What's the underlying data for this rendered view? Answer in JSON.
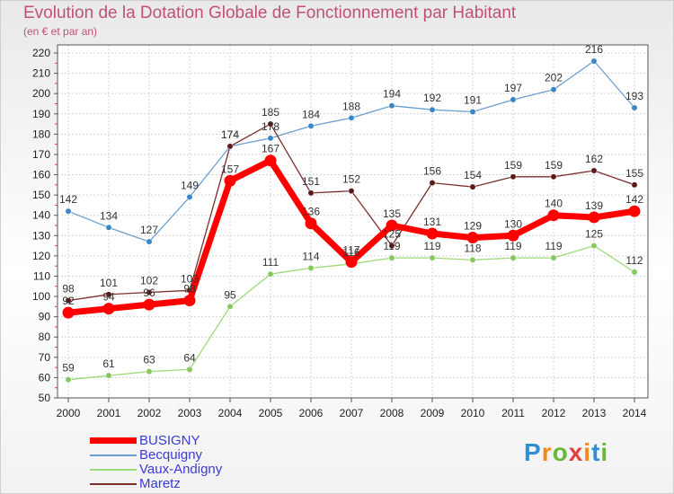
{
  "title": "Evolution de la Dotation Globale de Fonctionnement par Habitant",
  "subtitle": "(en € et par an)",
  "logo": {
    "text": "Proxiti",
    "letters": [
      "P",
      "r",
      "o",
      "x",
      "i",
      "t",
      "i"
    ],
    "colors": [
      "#2e8fd6",
      "#f08a1c",
      "#6ab83a",
      "#e04040",
      "#f08a1c",
      "#2e8fd6",
      "#6ab83a"
    ]
  },
  "chart_data": {
    "type": "line",
    "title": "Evolution de la Dotation Globale de Fonctionnement par Habitant",
    "subtitle": "(en € et par an)",
    "xlabel": "",
    "ylabel": "",
    "ylim": [
      50,
      220
    ],
    "yticks": [
      50,
      60,
      70,
      80,
      90,
      100,
      110,
      120,
      130,
      140,
      150,
      160,
      170,
      180,
      190,
      200,
      210,
      220
    ],
    "grid": true,
    "legend_position": "bottom-left",
    "x": [
      "2000",
      "2001",
      "2002",
      "2003",
      "2004",
      "2005",
      "2006",
      "2007",
      "2008",
      "2009",
      "2010",
      "2011",
      "2012",
      "2013",
      "2014"
    ],
    "series": [
      {
        "name": "Becquigny",
        "color": "#6a9fd0",
        "point_color": "#3a86c8",
        "width": 1.3,
        "marker": 3.2,
        "values": [
          142,
          134,
          127,
          149,
          174,
          178,
          184,
          188,
          194,
          192,
          191,
          197,
          202,
          216,
          193
        ]
      },
      {
        "name": "Vaux-Andigny",
        "color": "#9ed878",
        "point_color": "#86c85e",
        "width": 1.3,
        "marker": 3.2,
        "values": [
          59,
          61,
          63,
          64,
          95,
          111,
          114,
          116,
          119,
          119,
          118,
          119,
          119,
          125,
          112
        ]
      },
      {
        "name": "Maretz",
        "color": "#7a2e2e",
        "point_color": "#5a1a1a",
        "width": 1.3,
        "marker": 3.2,
        "values": [
          98,
          101,
          102,
          103,
          174,
          185,
          151,
          152,
          125,
          156,
          154,
          159,
          159,
          162,
          155
        ]
      },
      {
        "name": "BUSIGNY",
        "color": "#ff0000",
        "point_color": "#ff0000",
        "width": 7,
        "marker": 6.5,
        "values": [
          92,
          94,
          96,
          98,
          157,
          167,
          136,
          117,
          135,
          131,
          129,
          130,
          140,
          139,
          142
        ]
      }
    ],
    "legend_order": [
      "BUSIGNY",
      "Becquigny",
      "Vaux-Andigny",
      "Maretz"
    ]
  }
}
